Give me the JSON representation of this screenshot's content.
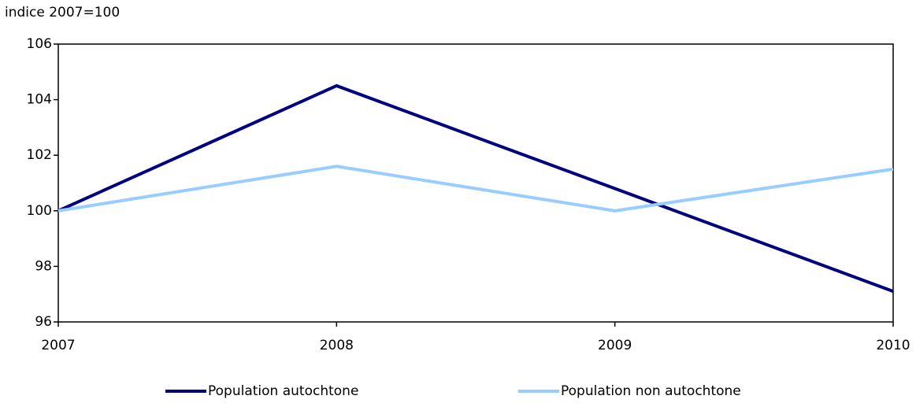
{
  "chart_data": {
    "type": "line",
    "y_axis_label": "indice 2007=100",
    "categories": [
      "2007",
      "2008",
      "2009",
      "2010"
    ],
    "series": [
      {
        "name": "Population autochtone",
        "color": "#000080",
        "values": [
          100,
          104.5,
          100.8,
          97.1
        ]
      },
      {
        "name": "Population non autochtone",
        "color": "#99ccff",
        "values": [
          100,
          101.6,
          100.0,
          101.5
        ]
      }
    ],
    "ylim": [
      96,
      106
    ],
    "yticks": [
      96,
      98,
      100,
      102,
      104,
      106
    ],
    "grid": false,
    "legend": "bottom"
  }
}
